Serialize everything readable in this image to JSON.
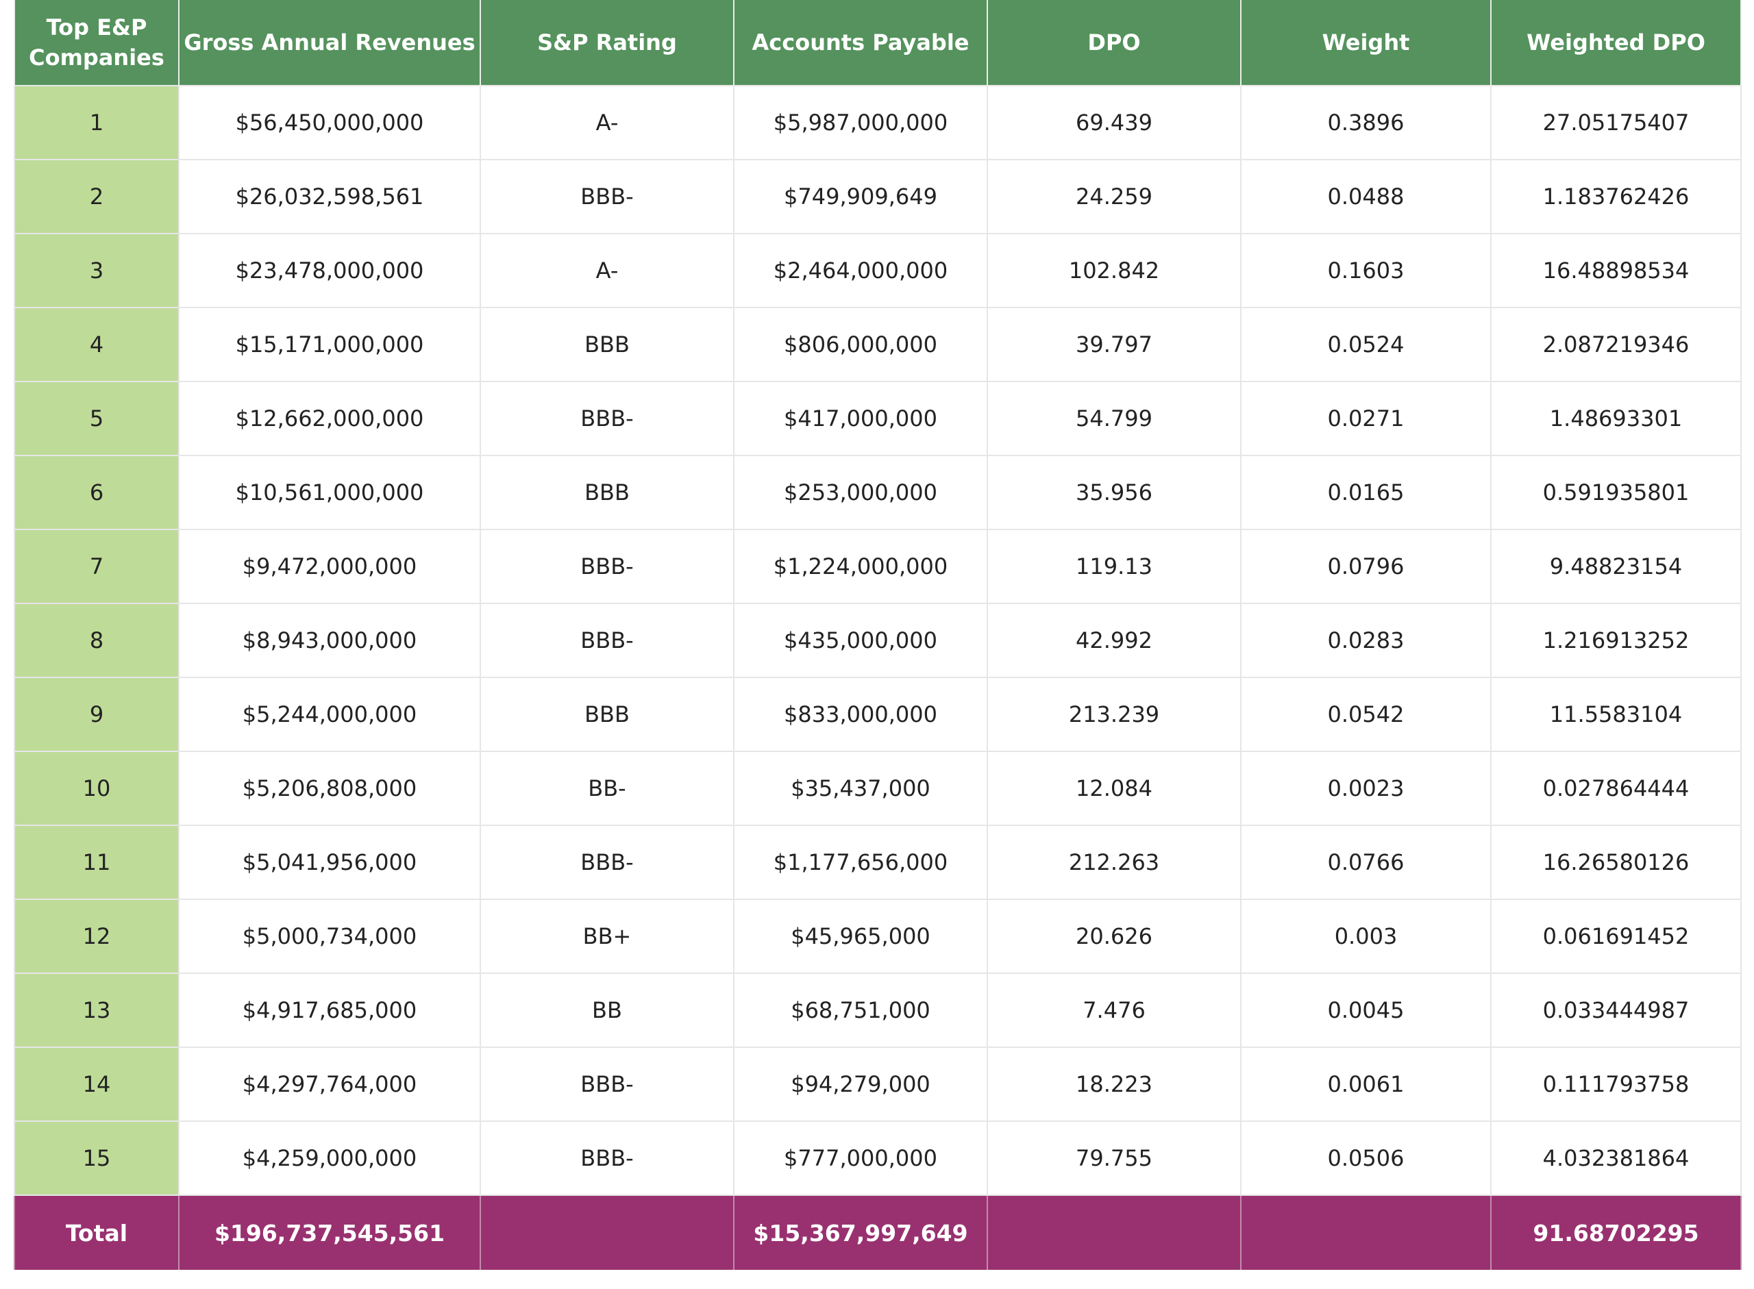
{
  "table": {
    "headers": {
      "company_line1": "Top E&P",
      "company_line2": "Companies",
      "revenue": "Gross Annual Revenues",
      "rating": "S&P Rating",
      "payable": "Accounts Payable",
      "dpo": "DPO",
      "weight": "Weight",
      "weighted_dpo": "Weighted DPO"
    },
    "rows": [
      {
        "rank": "1",
        "revenue": "$56,450,000,000",
        "rating": "A-",
        "payable": "$5,987,000,000",
        "dpo": "69.439",
        "weight": "0.3896",
        "weighted_dpo": "27.05175407"
      },
      {
        "rank": "2",
        "revenue": "$26,032,598,561",
        "rating": "BBB-",
        "payable": "$749,909,649",
        "dpo": "24.259",
        "weight": "0.0488",
        "weighted_dpo": "1.183762426"
      },
      {
        "rank": "3",
        "revenue": "$23,478,000,000",
        "rating": "A-",
        "payable": "$2,464,000,000",
        "dpo": "102.842",
        "weight": "0.1603",
        "weighted_dpo": "16.48898534"
      },
      {
        "rank": "4",
        "revenue": "$15,171,000,000",
        "rating": "BBB",
        "payable": "$806,000,000",
        "dpo": "39.797",
        "weight": "0.0524",
        "weighted_dpo": "2.087219346"
      },
      {
        "rank": "5",
        "revenue": "$12,662,000,000",
        "rating": "BBB-",
        "payable": "$417,000,000",
        "dpo": "54.799",
        "weight": "0.0271",
        "weighted_dpo": "1.48693301"
      },
      {
        "rank": "6",
        "revenue": "$10,561,000,000",
        "rating": "BBB",
        "payable": "$253,000,000",
        "dpo": "35.956",
        "weight": "0.0165",
        "weighted_dpo": "0.591935801"
      },
      {
        "rank": "7",
        "revenue": "$9,472,000,000",
        "rating": "BBB-",
        "payable": "$1,224,000,000",
        "dpo": "119.13",
        "weight": "0.0796",
        "weighted_dpo": "9.48823154"
      },
      {
        "rank": "8",
        "revenue": "$8,943,000,000",
        "rating": "BBB-",
        "payable": "$435,000,000",
        "dpo": "42.992",
        "weight": "0.0283",
        "weighted_dpo": "1.216913252"
      },
      {
        "rank": "9",
        "revenue": "$5,244,000,000",
        "rating": "BBB",
        "payable": "$833,000,000",
        "dpo": "213.239",
        "weight": "0.0542",
        "weighted_dpo": "11.5583104"
      },
      {
        "rank": "10",
        "revenue": "$5,206,808,000",
        "rating": "BB-",
        "payable": "$35,437,000",
        "dpo": "12.084",
        "weight": "0.0023",
        "weighted_dpo": "0.027864444"
      },
      {
        "rank": "11",
        "revenue": "$5,041,956,000",
        "rating": "BBB-",
        "payable": "$1,177,656,000",
        "dpo": "212.263",
        "weight": "0.0766",
        "weighted_dpo": "16.26580126"
      },
      {
        "rank": "12",
        "revenue": "$5,000,734,000",
        "rating": "BB+",
        "payable": "$45,965,000",
        "dpo": "20.626",
        "weight": "0.003",
        "weighted_dpo": "0.061691452"
      },
      {
        "rank": "13",
        "revenue": "$4,917,685,000",
        "rating": "BB",
        "payable": "$68,751,000",
        "dpo": "7.476",
        "weight": "0.0045",
        "weighted_dpo": "0.033444987"
      },
      {
        "rank": "14",
        "revenue": "$4,297,764,000",
        "rating": "BBB-",
        "payable": "$94,279,000",
        "dpo": "18.223",
        "weight": "0.0061",
        "weighted_dpo": "0.111793758"
      },
      {
        "rank": "15",
        "revenue": "$4,259,000,000",
        "rating": "BBB-",
        "payable": "$777,000,000",
        "dpo": "79.755",
        "weight": "0.0506",
        "weighted_dpo": "4.032381864"
      }
    ],
    "total": {
      "label": "Total",
      "revenue": "$196,737,545,561",
      "rating": "",
      "payable": "$15,367,997,649",
      "dpo": "",
      "weight": "",
      "weighted_dpo": "91.68702295"
    }
  },
  "colors": {
    "header_bg": "#55925d",
    "rank_col_bg": "#bedb98",
    "total_bg": "#993170"
  }
}
